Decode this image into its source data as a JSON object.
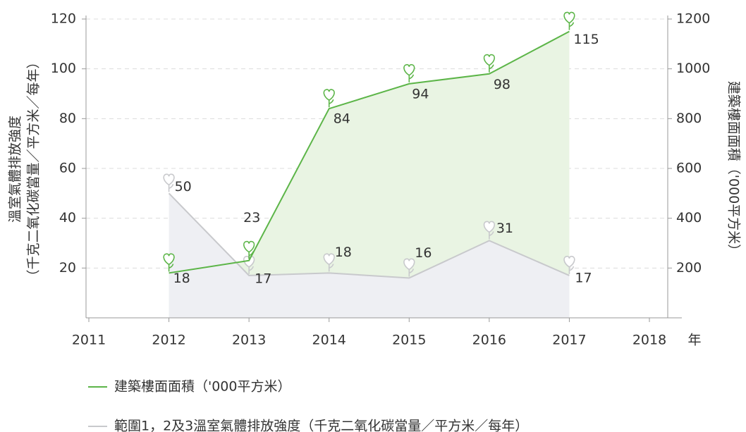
{
  "chart_data": {
    "type": "line",
    "x": [
      2012,
      2013,
      2014,
      2015,
      2016,
      2017
    ],
    "xlim": [
      2011,
      2018
    ],
    "xticks": [
      2011,
      2012,
      2013,
      2014,
      2015,
      2016,
      2017,
      2018
    ],
    "xlabel": "年",
    "ylabel": [
      "溫室氣體排放強度",
      "（千克二氧化碳當量／平方米／每年）"
    ],
    "ylim": [
      0,
      120
    ],
    "yticks": [
      20,
      40,
      60,
      80,
      100,
      120
    ],
    "y2label": "建築樓面面積（'000平方米）",
    "y2lim": [
      0,
      1200
    ],
    "y2ticks": [
      200,
      400,
      600,
      800,
      1000,
      1200
    ],
    "grid": true,
    "series": [
      {
        "name": "建築樓面面積（'000平方米）",
        "color": "#5cb548",
        "fill": "#e9f4e3",
        "values": [
          18,
          23,
          84,
          94,
          98,
          115
        ]
      },
      {
        "name": "範圍1，2及3溫室氣體排放強度（千克二氧化碳當量／平方米／每年）",
        "color": "#c8c9cc",
        "fill": "#eeeff3",
        "values": [
          50,
          17,
          18,
          16,
          31,
          17
        ]
      }
    ]
  }
}
